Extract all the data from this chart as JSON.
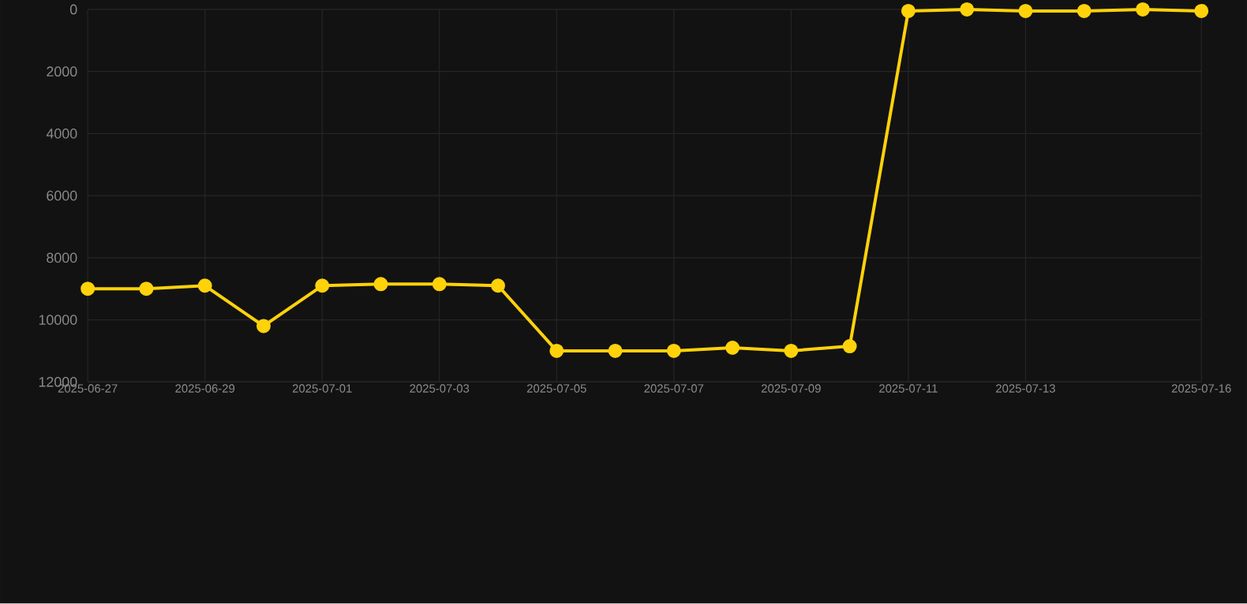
{
  "chart_data": {
    "type": "line",
    "x": [
      "2025-06-27",
      "2025-06-28",
      "2025-06-29",
      "2025-06-30",
      "2025-07-01",
      "2025-07-02",
      "2025-07-03",
      "2025-07-04",
      "2025-07-05",
      "2025-07-06",
      "2025-07-07",
      "2025-07-08",
      "2025-07-09",
      "2025-07-10",
      "2025-07-11",
      "2025-07-12",
      "2025-07-13",
      "2025-07-14",
      "2025-07-15",
      "2025-07-16"
    ],
    "series": [
      {
        "color": "#ffd20a",
        "values": [
          9000,
          9000,
          8900,
          10200,
          8900,
          8850,
          8850,
          8900,
          11000,
          11000,
          11000,
          10900,
          11000,
          10850,
          50,
          0,
          50,
          50,
          0,
          50
        ]
      }
    ],
    "ylim": [
      12000,
      0
    ],
    "yticks": [
      0,
      2000,
      4000,
      6000,
      8000,
      10000,
      12000
    ],
    "xlim": [
      "2025-06-27",
      "2025-07-16"
    ],
    "xticks": [
      "2025-06-27",
      "2025-06-29",
      "2025-07-01",
      "2025-07-03",
      "2025-07-05",
      "2025-07-07",
      "2025-07-09",
      "2025-07-11",
      "2025-07-13",
      "2025-07-16"
    ],
    "grid": true,
    "marker": "circle",
    "line_style": "solid"
  }
}
